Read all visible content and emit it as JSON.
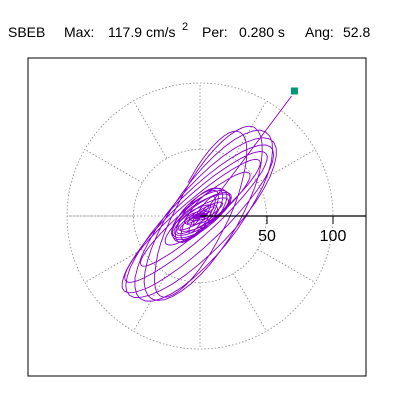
{
  "header": {
    "station": "SBEB",
    "max_label": "Max:",
    "max_value": "117.9",
    "max_unit": "cm/s",
    "max_unit_exp": "2",
    "per_label": "Per:",
    "per_value": "0.280 s",
    "ang_label": "Ang:",
    "ang_value": "52.8"
  },
  "colors": {
    "trace": "#8800cc",
    "marker": "#009977",
    "axis": "#000000",
    "grid": "#888888",
    "background": "#ffffff"
  },
  "chart_data": {
    "type": "polar-orbit",
    "title": "SBEB  Max: 117.9 cm/s2  Per: 0.280 s  Ang: 52.8",
    "rings": [
      50,
      100
    ],
    "tick_labels": [
      "50",
      "100"
    ],
    "spoke_every_deg": 30,
    "grid": true,
    "peak": {
      "value": 117.9,
      "angle_deg": 52.8
    },
    "marker": {
      "x": 71,
      "y": 94
    }
  }
}
